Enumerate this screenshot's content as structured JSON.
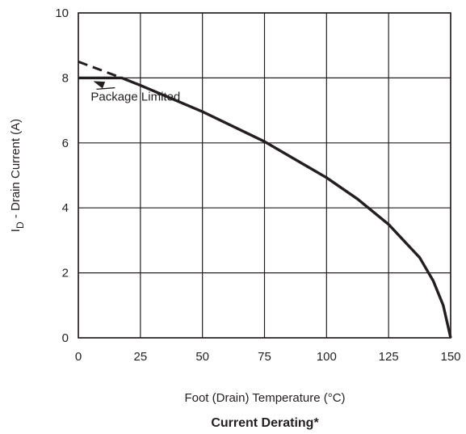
{
  "chart_data": {
    "type": "line",
    "title": "Current Derating*",
    "xlabel": "Foot (Drain) Temperature (°C)",
    "ylabel": {
      "main": "I",
      "sub": "D",
      "rest": " - Drain Current (A)"
    },
    "xlim": [
      0,
      150
    ],
    "ylim": [
      0,
      10
    ],
    "x_ticks": [
      0,
      25,
      50,
      75,
      100,
      125,
      150
    ],
    "y_ticks": [
      0,
      2,
      4,
      6,
      8,
      10
    ],
    "grid": true,
    "series": [
      {
        "style": "solid",
        "points": [
          [
            0,
            8.0
          ],
          [
            17.5,
            8.0
          ],
          [
            25,
            7.77
          ],
          [
            50,
            6.96
          ],
          [
            75,
            6.04
          ],
          [
            100,
            4.93
          ],
          [
            112.5,
            4.27
          ],
          [
            125,
            3.49
          ],
          [
            137.5,
            2.47
          ],
          [
            143,
            1.75
          ],
          [
            147,
            1.0
          ],
          [
            150,
            0.0
          ]
        ]
      },
      {
        "style": "dashed",
        "points": [
          [
            0,
            8.5
          ],
          [
            17.5,
            8.0
          ]
        ]
      }
    ],
    "annotations": [
      {
        "text": "Package Limited",
        "x": 5,
        "y": 7.3,
        "arrow_to": [
          6,
          7.95
        ]
      }
    ]
  }
}
